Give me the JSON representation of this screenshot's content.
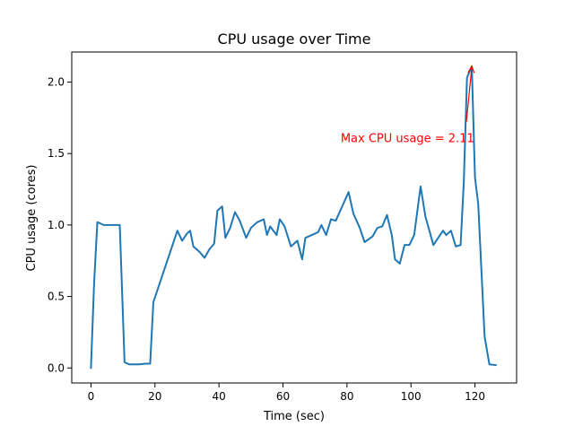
{
  "chart_data": {
    "type": "line",
    "title": "CPU usage over Time",
    "xlabel": "Time (sec)",
    "ylabel": "CPU usage (cores)",
    "xlim": [
      -6,
      133
    ],
    "ylim": [
      -0.105,
      2.21
    ],
    "x_ticks": [
      0,
      20,
      40,
      60,
      80,
      100,
      120
    ],
    "y_ticks": [
      0.0,
      0.5,
      1.0,
      1.5,
      2.0
    ],
    "x_tick_labels": [
      "0",
      "20",
      "40",
      "60",
      "80",
      "100",
      "120"
    ],
    "y_tick_labels": [
      "0.0",
      "0.5",
      "1.0",
      "1.5",
      "2.0"
    ],
    "grid": false,
    "legend": "none",
    "series": [
      {
        "color": "#1f77b4",
        "points": [
          [
            0,
            0.0
          ],
          [
            1,
            0.6
          ],
          [
            2,
            1.02
          ],
          [
            4,
            1.0
          ],
          [
            7,
            1.0
          ],
          [
            9,
            1.0
          ],
          [
            10.5,
            0.04
          ],
          [
            12,
            0.025
          ],
          [
            15,
            0.025
          ],
          [
            17,
            0.03
          ],
          [
            18.5,
            0.03
          ],
          [
            19.5,
            0.46
          ],
          [
            27,
            0.96
          ],
          [
            28.5,
            0.89
          ],
          [
            30,
            0.94
          ],
          [
            31,
            0.96
          ],
          [
            32,
            0.85
          ],
          [
            34,
            0.81
          ],
          [
            35.5,
            0.77
          ],
          [
            37,
            0.83
          ],
          [
            38.5,
            0.87
          ],
          [
            39.5,
            1.1
          ],
          [
            41,
            1.13
          ],
          [
            42,
            0.91
          ],
          [
            43.5,
            0.98
          ],
          [
            45,
            1.09
          ],
          [
            46.5,
            1.03
          ],
          [
            48.5,
            0.91
          ],
          [
            50,
            0.98
          ],
          [
            52,
            1.02
          ],
          [
            54,
            1.04
          ],
          [
            55,
            0.93
          ],
          [
            56,
            0.99
          ],
          [
            58,
            0.93
          ],
          [
            59,
            1.04
          ],
          [
            60.5,
            0.99
          ],
          [
            62.5,
            0.85
          ],
          [
            64.5,
            0.89
          ],
          [
            66,
            0.76
          ],
          [
            67,
            0.91
          ],
          [
            69,
            0.93
          ],
          [
            71,
            0.95
          ],
          [
            72,
            1.0
          ],
          [
            73.5,
            0.93
          ],
          [
            75,
            1.04
          ],
          [
            76.5,
            1.03
          ],
          [
            80.5,
            1.23
          ],
          [
            82,
            1.08
          ],
          [
            84,
            0.98
          ],
          [
            85.5,
            0.88
          ],
          [
            88,
            0.92
          ],
          [
            89.5,
            0.98
          ],
          [
            91,
            0.99
          ],
          [
            92.5,
            1.07
          ],
          [
            94,
            0.93
          ],
          [
            95,
            0.76
          ],
          [
            96.5,
            0.73
          ],
          [
            98,
            0.86
          ],
          [
            99.5,
            0.86
          ],
          [
            101,
            0.93
          ],
          [
            103,
            1.27
          ],
          [
            104.5,
            1.06
          ],
          [
            107,
            0.86
          ],
          [
            110,
            0.96
          ],
          [
            111,
            0.93
          ],
          [
            112.5,
            0.96
          ],
          [
            114,
            0.85
          ],
          [
            115.5,
            0.86
          ],
          [
            116.5,
            1.3
          ],
          [
            117.5,
            2.03
          ],
          [
            119,
            2.11
          ],
          [
            120,
            1.33
          ],
          [
            121,
            1.15
          ],
          [
            123,
            0.22
          ],
          [
            124.5,
            0.025
          ],
          [
            126.5,
            0.02
          ]
        ]
      }
    ],
    "annotation": {
      "text": "Max CPU usage = 2.11",
      "color": "#ff0000",
      "xy": [
        119,
        2.11
      ],
      "xytext": [
        94,
        1.61
      ]
    }
  }
}
